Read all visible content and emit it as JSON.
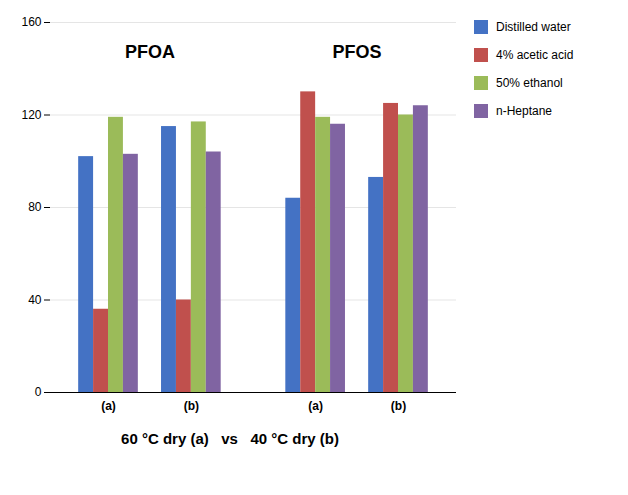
{
  "chart_data": {
    "type": "bar",
    "subtitle": "60 °C dry (a)   vs   40 °C dry (b)",
    "categories": [
      "(a)",
      "(b)",
      "(a)",
      "(b)"
    ],
    "series": [
      {
        "name": "Distilled water",
        "color": "#4472C4",
        "values": [
          102,
          115,
          84,
          93
        ]
      },
      {
        "name": "4% acetic acid",
        "color": "#C0504D",
        "values": [
          36,
          40,
          130,
          125
        ]
      },
      {
        "name": "50% ethanol",
        "color": "#9BBB59",
        "values": [
          119,
          117,
          119,
          120
        ]
      },
      {
        "name": "n-Heptane",
        "color": "#8064A2",
        "values": [
          103,
          104,
          116,
          124
        ]
      }
    ],
    "annotations": [
      {
        "text": "PFOA",
        "y": 147
      },
      {
        "text": "PFOS",
        "y": 147
      }
    ],
    "ylim": [
      0,
      160
    ],
    "yticks": [
      0,
      40,
      80,
      120,
      160
    ],
    "grid": true,
    "legend": "right"
  }
}
